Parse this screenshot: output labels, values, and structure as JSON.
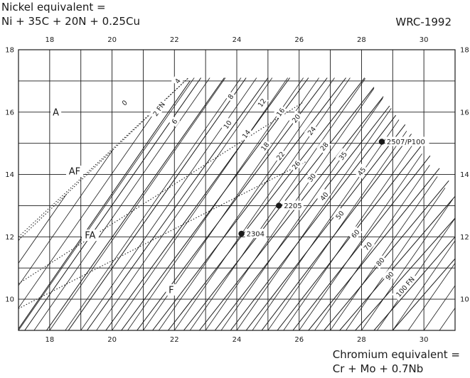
{
  "chart_data": {
    "type": "scatter",
    "title": "WRC-1992",
    "ylabel_lines": [
      "Nickel equivalent =",
      "Ni + 35C + 20N + 0.25Cu"
    ],
    "xlabel_lines": [
      "Chromium equivalent =",
      "Cr + Mo + 0.7Nb"
    ],
    "xlim": [
      17,
      31
    ],
    "ylim": [
      9,
      18
    ],
    "x_ticks": [
      "18",
      "20",
      "22",
      "24",
      "26",
      "28",
      "30"
    ],
    "y_ticks": [
      "10",
      "12",
      "14",
      "16",
      "18"
    ],
    "grid": true,
    "regions": [
      {
        "label": "A",
        "x": 18.2,
        "y": 16
      },
      {
        "label": "AF",
        "x": 18.8,
        "y": 14.1
      },
      {
        "label": "FA",
        "x": 19.3,
        "y": 12.05
      },
      {
        "label": "F",
        "x": 21.9,
        "y": 10.3
      }
    ],
    "boundaries": [
      {
        "name": "A/AF",
        "points": [
          [
            17,
            11.9
          ],
          [
            22.45,
            17.1
          ]
        ]
      },
      {
        "name": "AF/FA",
        "points": [
          [
            17,
            10.5
          ],
          [
            26.1,
            16.3
          ]
        ]
      },
      {
        "name": "FA/F",
        "points": [
          [
            17,
            9.7
          ],
          [
            26.2,
            14.4
          ]
        ]
      }
    ],
    "fn_lines": [
      {
        "label": "0",
        "dotted": true,
        "points": [
          [
            17,
            12.0
          ],
          [
            22.45,
            17.1
          ]
        ],
        "label_at": [
          20.4,
          16.3
        ]
      },
      {
        "label": "2 FN",
        "dotted": false,
        "points": [
          [
            17,
            9.05
          ],
          [
            22.5,
            17.0
          ]
        ],
        "label_at": [
          21.5,
          16.1
        ]
      },
      {
        "label": "4",
        "dotted": false,
        "points": [
          [
            17.2,
            9.0
          ],
          [
            22.85,
            17.1
          ]
        ],
        "label_at": [
          22.1,
          17.0
        ]
      },
      {
        "label": "6",
        "dotted": false,
        "points": [
          [
            17.9,
            9.0
          ],
          [
            23.6,
            17.1
          ]
        ],
        "label_at": [
          22.0,
          15.7
        ]
      },
      {
        "label": "8",
        "dotted": false,
        "points": [
          [
            18.6,
            9.0
          ],
          [
            24.3,
            17.1
          ]
        ],
        "label_at": [
          23.8,
          16.5
        ]
      },
      {
        "label": "10",
        "dotted": false,
        "points": [
          [
            19.2,
            9.0
          ],
          [
            25.0,
            17.1
          ]
        ],
        "label_at": [
          23.7,
          15.6
        ]
      },
      {
        "label": "12",
        "dotted": false,
        "points": [
          [
            19.8,
            9.0
          ],
          [
            25.7,
            17.1
          ]
        ],
        "label_at": [
          24.8,
          16.3
        ]
      },
      {
        "label": "14",
        "dotted": false,
        "points": [
          [
            20.3,
            9.0
          ],
          [
            26.3,
            17.1
          ]
        ],
        "label_at": [
          24.3,
          15.3
        ]
      },
      {
        "label": "16",
        "dotted": false,
        "points": [
          [
            20.8,
            9.0
          ],
          [
            26.9,
            17.1
          ]
        ],
        "label_at": [
          25.4,
          16.0
        ]
      },
      {
        "label": "18",
        "dotted": false,
        "points": [
          [
            21.3,
            9.0
          ],
          [
            27.5,
            17.1
          ]
        ],
        "label_at": [
          24.9,
          14.9
        ]
      },
      {
        "label": "20",
        "dotted": false,
        "points": [
          [
            21.8,
            9.0
          ],
          [
            28.1,
            17.1
          ]
        ],
        "label_at": [
          25.9,
          15.8
        ]
      },
      {
        "label": "22",
        "dotted": false,
        "points": [
          [
            22.3,
            9.0
          ],
          [
            28.4,
            16.8
          ]
        ],
        "label_at": [
          25.4,
          14.6
        ]
      },
      {
        "label": "24",
        "dotted": false,
        "points": [
          [
            22.8,
            9.0
          ],
          [
            28.7,
            16.5
          ]
        ],
        "label_at": [
          26.4,
          15.4
        ]
      },
      {
        "label": "26",
        "dotted": false,
        "points": [
          [
            23.3,
            9.0
          ],
          [
            28.9,
            16.2
          ]
        ],
        "label_at": [
          25.9,
          14.3
        ]
      },
      {
        "label": "28",
        "dotted": false,
        "points": [
          [
            23.8,
            9.0
          ],
          [
            29.1,
            15.9
          ]
        ],
        "label_at": [
          26.8,
          14.9
        ]
      },
      {
        "label": "30",
        "dotted": false,
        "points": [
          [
            24.3,
            9.0
          ],
          [
            29.4,
            15.6
          ]
        ],
        "label_at": [
          26.4,
          13.9
        ]
      },
      {
        "label": "35",
        "dotted": false,
        "points": [
          [
            24.8,
            9.0
          ],
          [
            29.6,
            15.3
          ]
        ],
        "label_at": [
          27.4,
          14.6
        ]
      },
      {
        "label": "40",
        "dotted": false,
        "points": [
          [
            25.3,
            9.0
          ],
          [
            29.9,
            14.9
          ]
        ],
        "label_at": [
          26.8,
          13.3
        ]
      },
      {
        "label": "45",
        "dotted": false,
        "points": [
          [
            25.8,
            9.0
          ],
          [
            30.2,
            14.6
          ]
        ],
        "label_at": [
          28.0,
          14.1
        ]
      },
      {
        "label": "50",
        "dotted": false,
        "points": [
          [
            26.3,
            9.0
          ],
          [
            30.5,
            14.2
          ]
        ],
        "label_at": [
          27.3,
          12.7
        ]
      },
      {
        "label": "60",
        "dotted": false,
        "points": [
          [
            26.8,
            9.0
          ],
          [
            30.8,
            13.8
          ]
        ],
        "label_at": [
          27.8,
          12.1
        ]
      },
      {
        "label": "70",
        "dotted": false,
        "points": [
          [
            27.3,
            9.0
          ],
          [
            31.0,
            13.3
          ]
        ],
        "label_at": [
          28.2,
          11.7
        ]
      },
      {
        "label": "80",
        "dotted": false,
        "points": [
          [
            27.8,
            9.0
          ],
          [
            31.0,
            12.6
          ]
        ],
        "label_at": [
          28.6,
          11.2
        ]
      },
      {
        "label": "90",
        "dotted": false,
        "points": [
          [
            28.4,
            9.0
          ],
          [
            31.0,
            12.0
          ]
        ],
        "label_at": [
          28.9,
          10.75
        ]
      },
      {
        "label": "100 FN",
        "dotted": false,
        "points": [
          [
            29.0,
            9.0
          ],
          [
            31.0,
            11.3
          ]
        ],
        "label_at": [
          29.4,
          10.4
        ]
      }
    ],
    "hatch": {
      "description": "shaded ferrite region",
      "x_start": 17,
      "x_end": 31
    },
    "points": [
      {
        "label": "2507/P100",
        "x": 28.65,
        "y": 15.05
      },
      {
        "label": "2205",
        "x": 25.35,
        "y": 13.0
      },
      {
        "label": "2304",
        "x": 24.15,
        "y": 12.1
      }
    ]
  }
}
